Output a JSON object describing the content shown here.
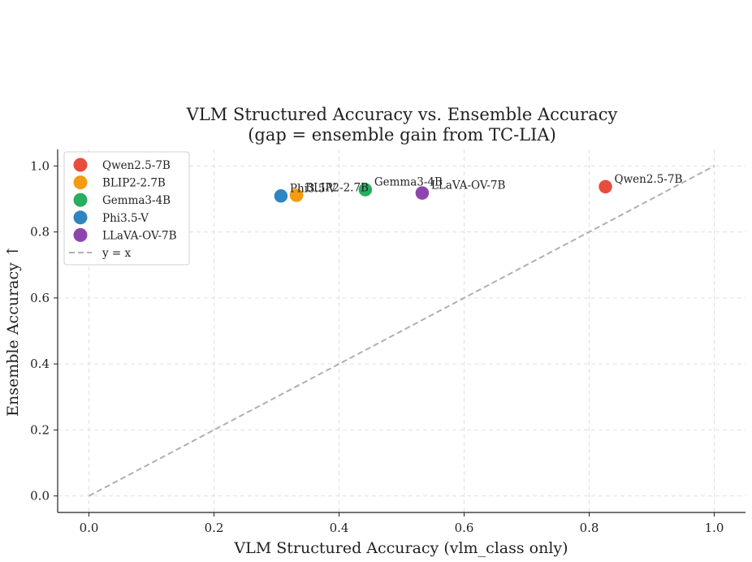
{
  "chart_data": {
    "type": "scatter",
    "title": "VLM Structured Accuracy vs. Ensemble Accuracy",
    "subtitle": "(gap = ensemble gain from TC-LIA)",
    "xlabel": "VLM Structured Accuracy (vlm_class only)",
    "ylabel": "Ensemble Accuracy ↑",
    "xlim": [
      -0.05,
      1.05
    ],
    "ylim": [
      -0.05,
      1.05
    ],
    "xticks": [
      0.0,
      0.2,
      0.4,
      0.6,
      0.8,
      1.0
    ],
    "yticks": [
      0.0,
      0.2,
      0.4,
      0.6,
      0.8,
      1.0
    ],
    "grid": true,
    "legend_position": "top-left",
    "series": [
      {
        "name": "Qwen2.5-7B",
        "color": "#e74c3c",
        "x": 0.826,
        "y": 0.937
      },
      {
        "name": "BLIP2-2.7B",
        "color": "#f39c12",
        "x": 0.332,
        "y": 0.911
      },
      {
        "name": "Gemma3-4B",
        "color": "#27ae60",
        "x": 0.442,
        "y": 0.928
      },
      {
        "name": "Phi3.5-V",
        "color": "#2e86c1",
        "x": 0.307,
        "y": 0.909
      },
      {
        "name": "LLaVA-OV-7B",
        "color": "#8e44ad",
        "x": 0.533,
        "y": 0.918
      }
    ],
    "reference_line": {
      "name": "y = x",
      "color": "#b0b0b0",
      "style": "dashed",
      "from": [
        0.0,
        0.0
      ],
      "to": [
        1.0,
        1.0
      ]
    }
  }
}
